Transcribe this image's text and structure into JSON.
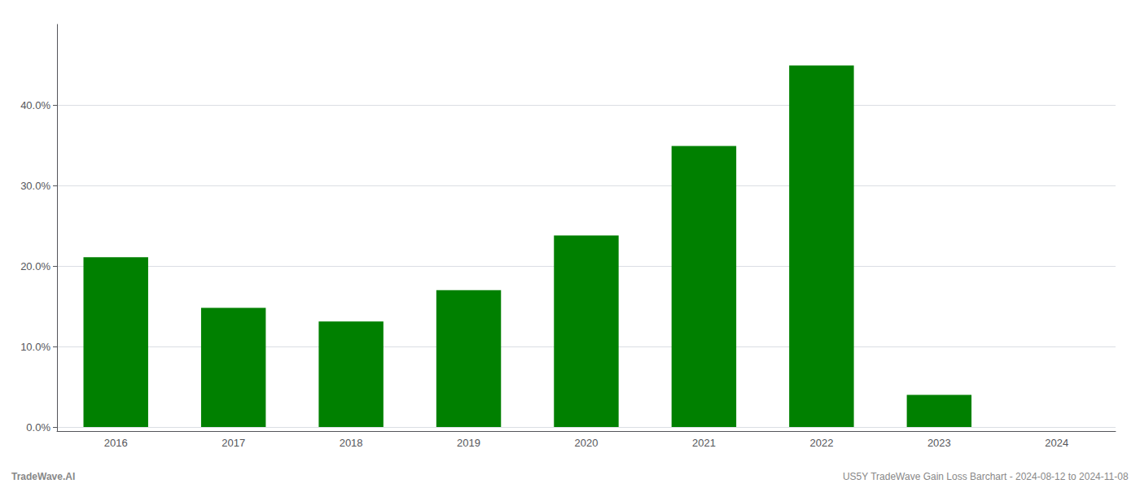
{
  "chart_data": {
    "type": "bar",
    "categories": [
      "2016",
      "2017",
      "2018",
      "2019",
      "2020",
      "2021",
      "2022",
      "2023",
      "2024"
    ],
    "values": [
      0.211,
      0.148,
      0.131,
      0.17,
      0.238,
      0.349,
      0.449,
      0.04,
      0.0
    ],
    "color": "#008000",
    "ylim": [
      -0.005,
      0.5
    ],
    "yticks": [
      {
        "value": 0.0,
        "label": "0.0%"
      },
      {
        "value": 0.1,
        "label": "10.0%"
      },
      {
        "value": 0.2,
        "label": "20.0%"
      },
      {
        "value": 0.3,
        "label": "30.0%"
      },
      {
        "value": 0.4,
        "label": "40.0%"
      }
    ],
    "grid": true,
    "annotations": [
      "TradeWave.AI",
      "US5Y TradeWave Gain Loss Barchart - 2024-08-12 to 2024-11-08"
    ]
  }
}
